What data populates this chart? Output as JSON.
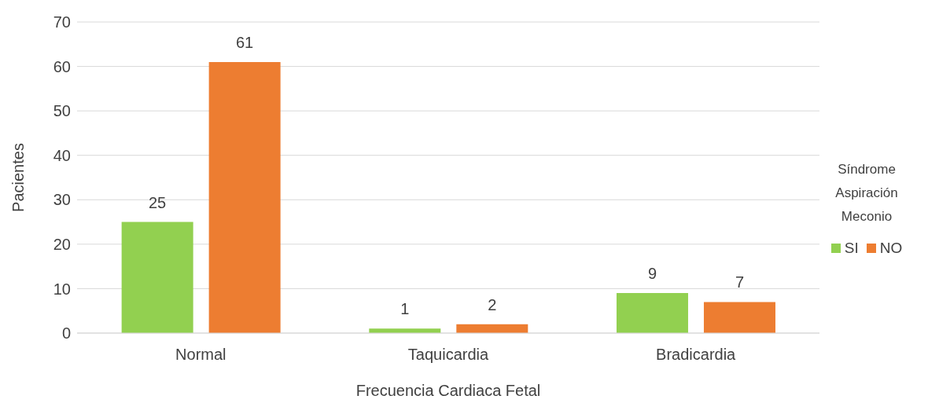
{
  "chart_data": {
    "type": "bar",
    "xlabel": "Frecuencia Cardiaca Fetal",
    "ylabel": "Pacientes",
    "legend_title": "Síndrome Aspiración Meconio",
    "categories": [
      "Normal",
      "Taquicardia",
      "Bradicardia"
    ],
    "series": [
      {
        "name": "SI",
        "color": "#92d050",
        "values": [
          25,
          1,
          9
        ]
      },
      {
        "name": "NO",
        "color": "#ed7d31",
        "values": [
          61,
          2,
          7
        ]
      }
    ],
    "ylim": [
      0,
      70
    ],
    "yticks": [
      0,
      10,
      20,
      30,
      40,
      50,
      60,
      70
    ],
    "grid": "y",
    "legend": "right",
    "data_labels": true
  }
}
